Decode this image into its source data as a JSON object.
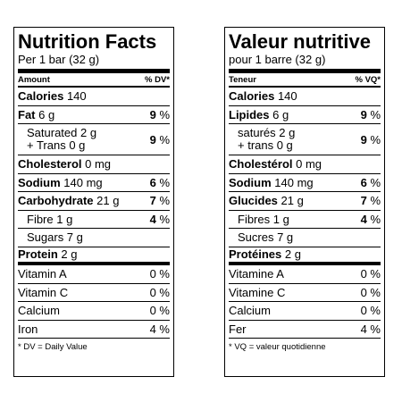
{
  "english": {
    "title": "Nutrition Facts",
    "serving": "Per 1 bar (32 g)",
    "header": {
      "left": "Amount",
      "right": "% DV*"
    },
    "rows": {
      "calories": {
        "label": "Calories",
        "amount": "140"
      },
      "fat": {
        "label": "Fat",
        "amount": "6 g",
        "dv": "9",
        "unit": "%"
      },
      "saturated": {
        "line1": "Saturated 2 g",
        "line2": "+ Trans 0 g",
        "dv": "9",
        "unit": "%"
      },
      "cholesterol": {
        "label": "Cholesterol",
        "amount": "0 mg"
      },
      "sodium": {
        "label": "Sodium",
        "amount": "140 mg",
        "dv": "6",
        "unit": "%"
      },
      "carbohydrate": {
        "label": "Carbohydrate",
        "amount": "21 g",
        "dv": "7",
        "unit": "%"
      },
      "fibre": {
        "label": "Fibre 1 g",
        "dv": "4",
        "unit": "%"
      },
      "sugars": {
        "label": "Sugars 7 g"
      },
      "protein": {
        "label": "Protein",
        "amount": "2 g"
      }
    },
    "vitamins": [
      {
        "name": "Vitamin A",
        "dv": "0 %"
      },
      {
        "name": "Vitamin C",
        "dv": "0 %"
      },
      {
        "name": "Calcium",
        "dv": "0 %"
      },
      {
        "name": "Iron",
        "dv": "4 %"
      }
    ],
    "footnote": "* DV = Daily Value"
  },
  "french": {
    "title": "Valeur nutritive",
    "serving": "pour 1 barre (32 g)",
    "header": {
      "left": "Teneur",
      "right": "% VQ*"
    },
    "rows": {
      "calories": {
        "label": "Calories",
        "amount": "140"
      },
      "fat": {
        "label": "Lipides",
        "amount": "6 g",
        "dv": "9",
        "unit": "%"
      },
      "saturated": {
        "line1": "saturés 2 g",
        "line2": "+ trans 0 g",
        "dv": "9",
        "unit": "%"
      },
      "cholesterol": {
        "label": "Cholestérol",
        "amount": "0 mg"
      },
      "sodium": {
        "label": "Sodium",
        "amount": "140 mg",
        "dv": "6",
        "unit": "%"
      },
      "carbohydrate": {
        "label": "Glucides",
        "amount": "21 g",
        "dv": "7",
        "unit": "%"
      },
      "fibre": {
        "label": "Fibres 1 g",
        "dv": "4",
        "unit": "%"
      },
      "sugars": {
        "label": "Sucres 7 g"
      },
      "protein": {
        "label": "Protéines",
        "amount": "2 g"
      }
    },
    "vitamins": [
      {
        "name": "Vitamine A",
        "dv": "0 %"
      },
      {
        "name": "Vitamine C",
        "dv": "0 %"
      },
      {
        "name": "Calcium",
        "dv": "0 %"
      },
      {
        "name": "Fer",
        "dv": "4 %"
      }
    ],
    "footnote": "* VQ = valeur quotidienne"
  }
}
